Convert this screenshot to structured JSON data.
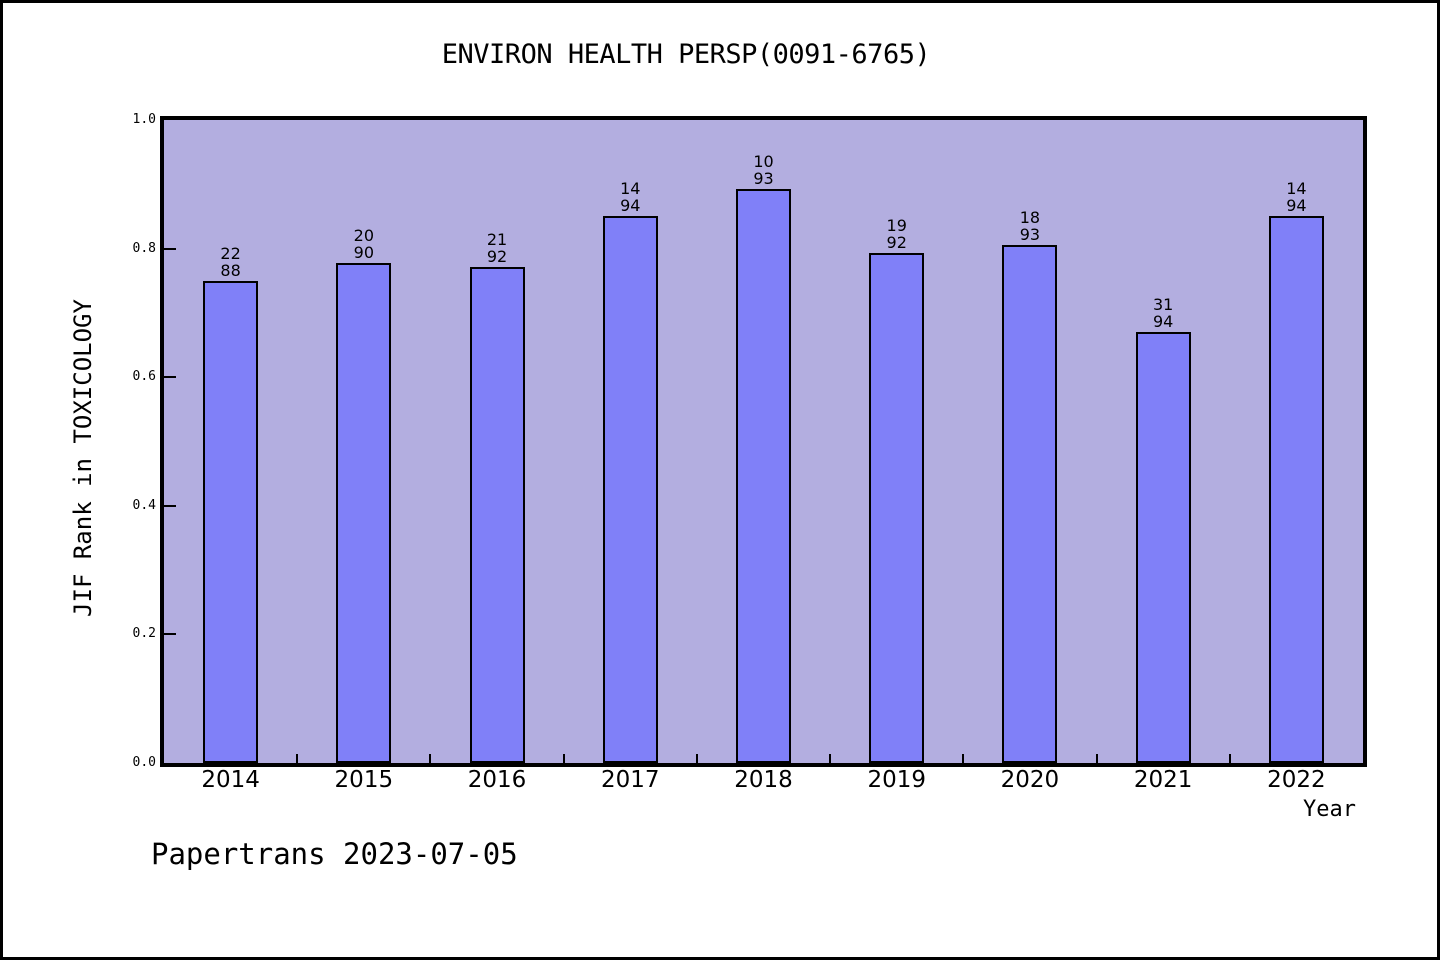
{
  "title": "ENVIRON HEALTH PERSP(0091-6765)",
  "watermark": "Papertrans 2023-07-05",
  "chart_data": {
    "type": "bar",
    "title": "ENVIRON HEALTH PERSP(0091-6765)",
    "xlabel": "Year",
    "ylabel": "JIF Rank in TOXICOLOGY",
    "ylim": [
      0.0,
      1.0
    ],
    "ytick_labels": [
      "0.0",
      "0.2",
      "0.4",
      "0.6",
      "0.8",
      "1.0"
    ],
    "ytick_values": [
      0.0,
      0.2,
      0.4,
      0.6,
      0.8,
      1.0
    ],
    "grid": "off",
    "legend": "none",
    "categories": [
      "2014",
      "2015",
      "2016",
      "2017",
      "2018",
      "2019",
      "2020",
      "2021",
      "2022"
    ],
    "bars": [
      {
        "year": "2014",
        "rank": 22,
        "total": 88,
        "value": 0.75
      },
      {
        "year": "2015",
        "rank": 20,
        "total": 90,
        "value": 0.778
      },
      {
        "year": "2016",
        "rank": 21,
        "total": 92,
        "value": 0.772
      },
      {
        "year": "2017",
        "rank": 14,
        "total": 94,
        "value": 0.851
      },
      {
        "year": "2018",
        "rank": 10,
        "total": 93,
        "value": 0.892
      },
      {
        "year": "2019",
        "rank": 19,
        "total": 92,
        "value": 0.793
      },
      {
        "year": "2020",
        "rank": 18,
        "total": 93,
        "value": 0.806
      },
      {
        "year": "2021",
        "rank": 31,
        "total": 94,
        "value": 0.67
      },
      {
        "year": "2022",
        "rank": 14,
        "total": 94,
        "value": 0.851
      }
    ],
    "colors": {
      "bar_fill": "#8080f8",
      "bar_edge": "#000000",
      "plot_background": "#b3aee0",
      "page_background": "#ffffff",
      "text": "#000000"
    }
  }
}
